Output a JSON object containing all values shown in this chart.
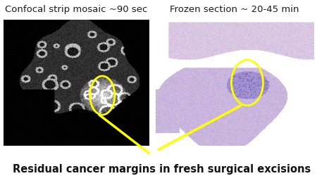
{
  "bg_color": "#ffffff",
  "left_label": "Confocal strip mosaic ~90 sec",
  "right_label": "Frozen section ~ 20-45 min",
  "bottom_caption": "Residual cancer margins in fresh surgical excisions",
  "label_fontsize": 9.5,
  "caption_fontsize": 10.5,
  "circle_color": "yellow",
  "circle_linewidth": 2.0,
  "line_color": "yellow",
  "line_width": 2.5
}
